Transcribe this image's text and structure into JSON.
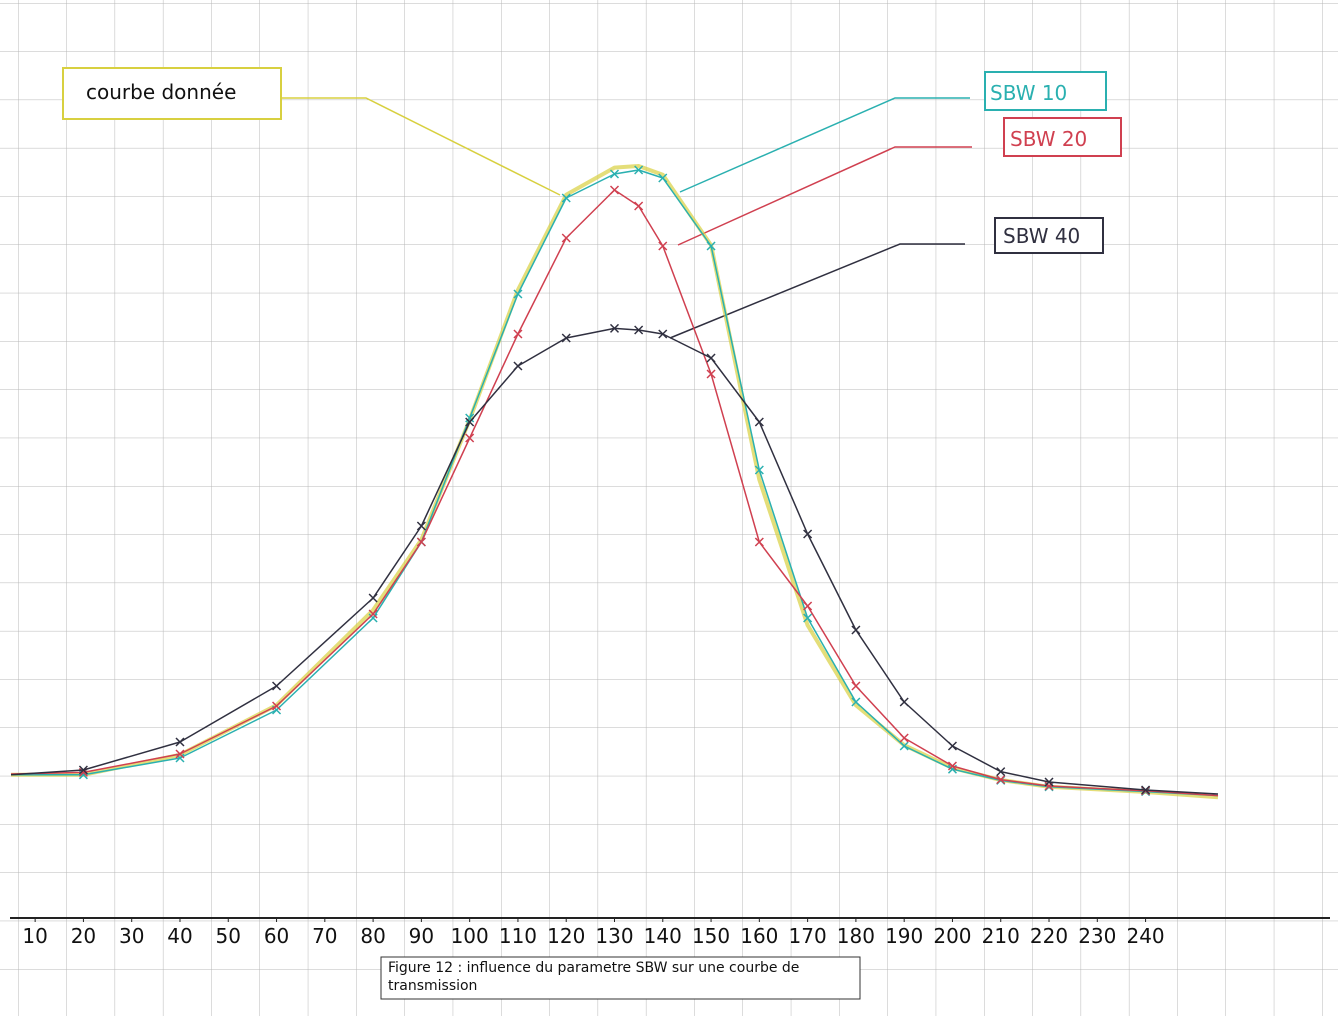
{
  "chart_data": {
    "type": "line",
    "annotation": "courbe donnée",
    "caption": "Figure 12 : influence du parametre SBW sur une courbe de transmission",
    "x": [
      5,
      20,
      40,
      60,
      80,
      90,
      100,
      110,
      120,
      130,
      135,
      140,
      150,
      160,
      170,
      180,
      190,
      200,
      210,
      220,
      240,
      255
    ],
    "xlim": [
      5,
      255
    ],
    "xticks": [
      10,
      20,
      30,
      40,
      50,
      60,
      70,
      80,
      90,
      100,
      110,
      120,
      130,
      140,
      150,
      160,
      170,
      180,
      190,
      200,
      210,
      220,
      230,
      240
    ],
    "ylim": [
      0,
      100
    ],
    "series": [
      {
        "name": "courbe donnée",
        "color": "#d8d040",
        "values": [
          17.9,
          17.9,
          20.4,
          26.6,
          38.5,
          47.3,
          62.3,
          78.5,
          90.4,
          93.8,
          94,
          92.9,
          84.1,
          54.8,
          36.6,
          26.6,
          21.6,
          18.75,
          17.25,
          16.4,
          15.75,
          15.1
        ]
      },
      {
        "name": "SBW 10",
        "color": "#2ab0b0",
        "values": [
          17.9,
          17.9,
          20,
          26,
          37.5,
          47,
          62.5,
          78,
          90,
          93,
          93.5,
          92.5,
          84,
          56,
          37.5,
          27,
          21.5,
          18.6,
          17.2,
          16.4,
          15.8,
          15.3
        ]
      },
      {
        "name": "SBW 20",
        "color": "#d04050",
        "values": [
          18,
          18.2,
          20.5,
          26.5,
          38,
          47,
          60,
          73,
          85,
          91,
          89,
          84,
          68,
          47,
          39,
          29,
          22.5,
          19,
          17.3,
          16.5,
          15.9,
          15.3
        ]
      },
      {
        "name": "SBW 40",
        "color": "#303040",
        "values": [
          17.9,
          18.5,
          22,
          29,
          40,
          49,
          62,
          69,
          72.5,
          73.7,
          73.5,
          73,
          70,
          62,
          48,
          36,
          27,
          21.5,
          18.3,
          17,
          16,
          15.5
        ]
      }
    ]
  }
}
